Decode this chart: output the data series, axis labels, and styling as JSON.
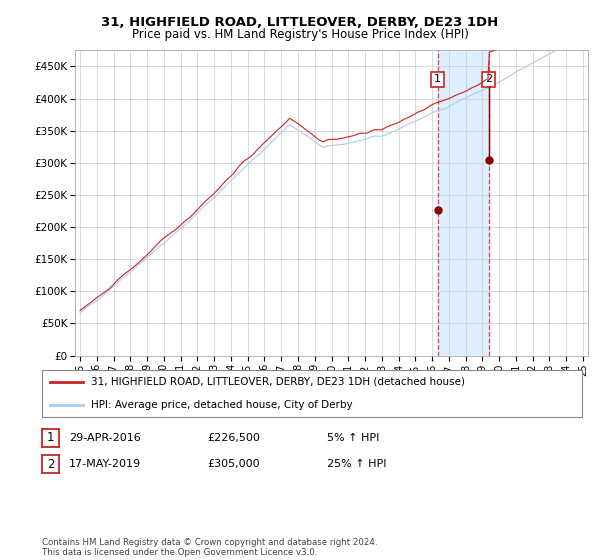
{
  "title": "31, HIGHFIELD ROAD, LITTLEOVER, DERBY, DE23 1DH",
  "subtitle": "Price paid vs. HM Land Registry's House Price Index (HPI)",
  "sale1_year": 2016.33,
  "sale1_price": 226500,
  "sale1_label": "1",
  "sale2_year": 2019.38,
  "sale2_price": 305000,
  "sale2_label": "2",
  "ylim": [
    0,
    475000
  ],
  "yticks": [
    0,
    50000,
    100000,
    150000,
    200000,
    250000,
    300000,
    350000,
    400000,
    450000
  ],
  "ytick_labels": [
    "£0",
    "£50K",
    "£100K",
    "£150K",
    "£200K",
    "£250K",
    "£300K",
    "£350K",
    "£400K",
    "£450K"
  ],
  "xtick_years": [
    1995,
    1996,
    1997,
    1998,
    1999,
    2000,
    2001,
    2002,
    2003,
    2004,
    2005,
    2006,
    2007,
    2008,
    2009,
    2010,
    2011,
    2012,
    2013,
    2014,
    2015,
    2016,
    2017,
    2018,
    2019,
    2020,
    2021,
    2022,
    2023,
    2024,
    2025
  ],
  "hpi_color": "#aaccee",
  "price_color": "#cc2222",
  "sale_dot_color": "#880000",
  "highlight_color": "#ddeeff",
  "grid_color": "#cccccc",
  "background_color": "#ffffff",
  "legend_label_price": "31, HIGHFIELD ROAD, LITTLEOVER, DERBY, DE23 1DH (detached house)",
  "legend_label_hpi": "HPI: Average price, detached house, City of Derby",
  "table_row1": [
    "1",
    "29-APR-2016",
    "£226,500",
    "5% ↑ HPI"
  ],
  "table_row2": [
    "2",
    "17-MAY-2019",
    "£305,000",
    "25% ↑ HPI"
  ],
  "footer": "Contains HM Land Registry data © Crown copyright and database right 2024.\nThis data is licensed under the Open Government Licence v3.0."
}
